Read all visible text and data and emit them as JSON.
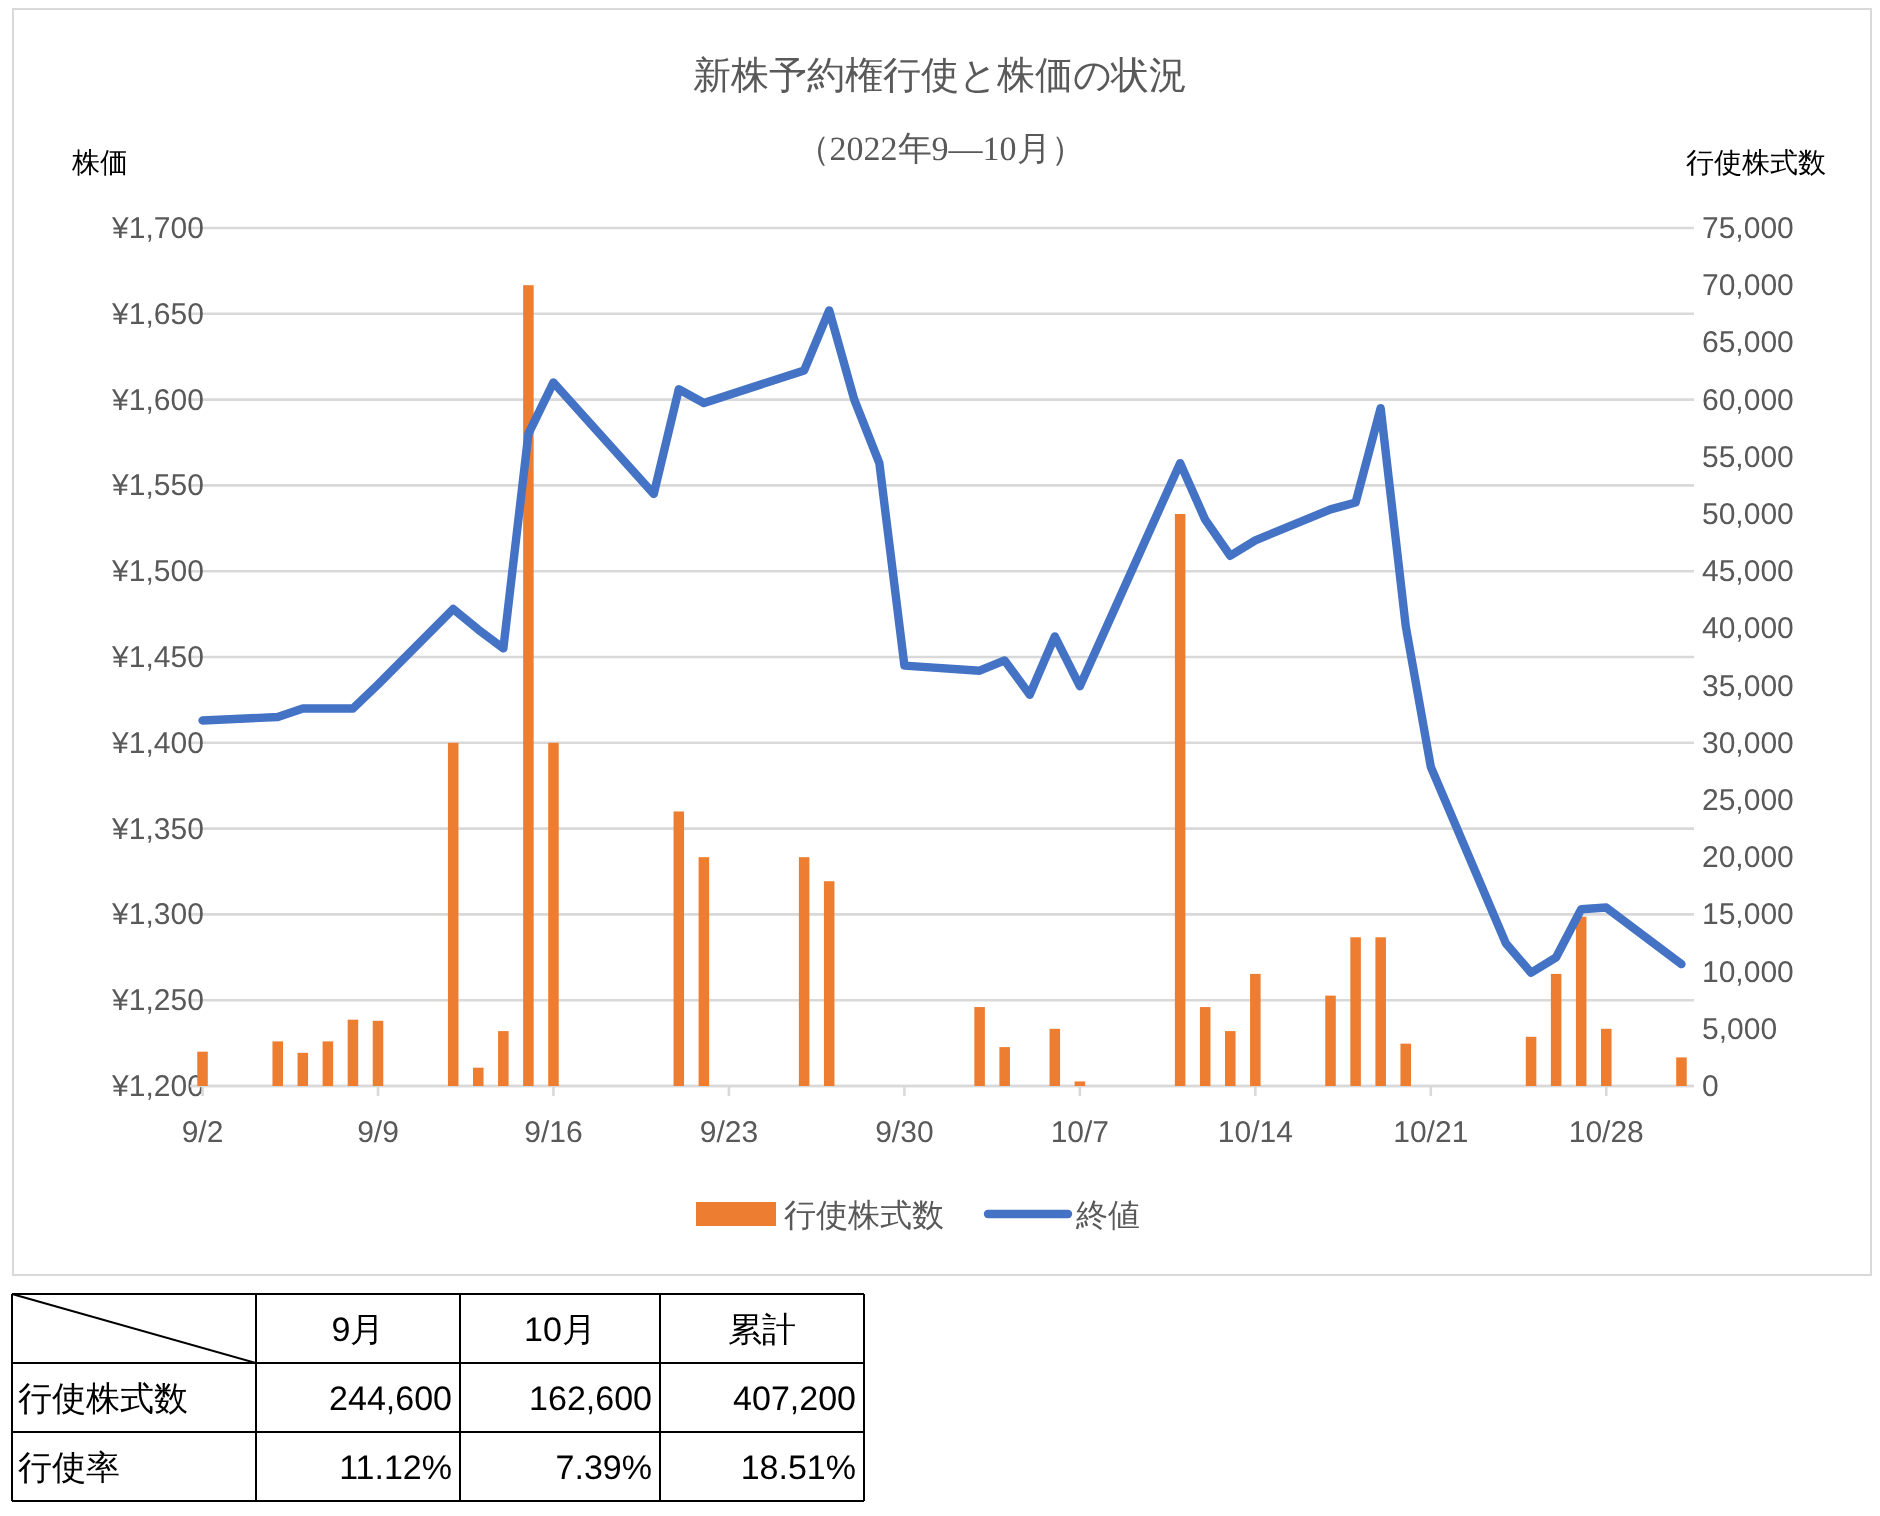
{
  "chart_data": [
    {
      "type": "bar",
      "title": "新株予約権行使と株価の状況",
      "subtitle": "（2022年9—10月）",
      "ylabel": "株価",
      "y2label": "行使株式数",
      "xlim": [
        "2022-09-01T12:00",
        "2022-10-31T12:00"
      ],
      "xticks": [
        {
          "value": "2022-09-02",
          "label": "9/2"
        },
        {
          "value": "2022-09-09",
          "label": "9/9"
        },
        {
          "value": "2022-09-16",
          "label": "9/16"
        },
        {
          "value": "2022-09-23",
          "label": "9/23"
        },
        {
          "value": "2022-09-30",
          "label": "9/30"
        },
        {
          "value": "2022-10-07",
          "label": "10/7"
        },
        {
          "value": "2022-10-14",
          "label": "10/14"
        },
        {
          "value": "2022-10-21",
          "label": "10/21"
        },
        {
          "value": "2022-10-28",
          "label": "10/28"
        }
      ],
      "ylim": [
        1200,
        1700
      ],
      "yticks": [
        {
          "value": 1200,
          "label": "¥1,200"
        },
        {
          "value": 1250,
          "label": "¥1,250"
        },
        {
          "value": 1300,
          "label": "¥1,300"
        },
        {
          "value": 1350,
          "label": "¥1,350"
        },
        {
          "value": 1400,
          "label": "¥1,400"
        },
        {
          "value": 1450,
          "label": "¥1,450"
        },
        {
          "value": 1500,
          "label": "¥1,500"
        },
        {
          "value": 1550,
          "label": "¥1,550"
        },
        {
          "value": 1600,
          "label": "¥1,600"
        },
        {
          "value": 1650,
          "label": "¥1,650"
        },
        {
          "value": 1700,
          "label": "¥1,700"
        }
      ],
      "y2lim": [
        0,
        75000
      ],
      "y2ticks": [
        0,
        {
          "value": 5000,
          "label": "5,000"
        },
        {
          "value": 10000,
          "label": "10,000"
        },
        {
          "value": 15000,
          "label": "15,000"
        },
        {
          "value": 20000,
          "label": "20,000"
        },
        {
          "value": 25000,
          "label": "25,000"
        },
        {
          "value": 30000,
          "label": "30,000"
        },
        {
          "value": 35000,
          "label": "35,000"
        },
        {
          "value": 40000,
          "label": "40,000"
        },
        {
          "value": 45000,
          "label": "45,000"
        },
        {
          "value": 50000,
          "label": "50,000"
        },
        {
          "value": 55000,
          "label": "55,000"
        },
        {
          "value": 60000,
          "label": "60,000"
        },
        {
          "value": 65000,
          "label": "65,000"
        },
        {
          "value": 70000,
          "label": "70,000"
        },
        {
          "value": 75000,
          "label": "75,000"
        }
      ],
      "grid": "y",
      "legend": "bottom",
      "line_style": "solid",
      "marker": "none",
      "series": [
        {
          "name": "行使株式数",
          "type": "bar",
          "axis": "y2",
          "color": "#ed7d31",
          "x": [
            "2022-09-02",
            "2022-09-05",
            "2022-09-06",
            "2022-09-07",
            "2022-09-08",
            "2022-09-09",
            "2022-09-12",
            "2022-09-13",
            "2022-09-14",
            "2022-09-15",
            "2022-09-16",
            "2022-09-21",
            "2022-09-22",
            "2022-09-26",
            "2022-09-27",
            "2022-10-03",
            "2022-10-04",
            "2022-10-06",
            "2022-10-07",
            "2022-10-11",
            "2022-10-12",
            "2022-10-13",
            "2022-10-14",
            "2022-10-17",
            "2022-10-18",
            "2022-10-19",
            "2022-10-20",
            "2022-10-25",
            "2022-10-26",
            "2022-10-27",
            "2022-10-28",
            "2022-10-31"
          ],
          "values": [
            3000,
            3900,
            2900,
            3900,
            5800,
            5700,
            30000,
            1600,
            4800,
            70000,
            30000,
            24000,
            20000,
            20000,
            17900,
            6900,
            3400,
            5000,
            400,
            50000,
            6900,
            4800,
            9800,
            7900,
            13000,
            13000,
            3700,
            4300,
            9800,
            14800,
            5000,
            2500
          ]
        },
        {
          "name": "終値",
          "type": "line",
          "color": "#4472c4",
          "x": [
            "2022-09-02",
            "2022-09-05",
            "2022-09-06",
            "2022-09-07",
            "2022-09-08",
            "2022-09-09",
            "2022-09-12",
            "2022-09-13",
            "2022-09-14",
            "2022-09-15",
            "2022-09-16",
            "2022-09-20",
            "2022-09-21",
            "2022-09-22",
            "2022-09-26",
            "2022-09-27",
            "2022-09-28",
            "2022-09-29",
            "2022-09-30",
            "2022-10-03",
            "2022-10-04",
            "2022-10-05",
            "2022-10-06",
            "2022-10-07",
            "2022-10-11",
            "2022-10-12",
            "2022-10-13",
            "2022-10-14",
            "2022-10-17",
            "2022-10-18",
            "2022-10-19",
            "2022-10-20",
            "2022-10-21",
            "2022-10-24",
            "2022-10-25",
            "2022-10-26",
            "2022-10-27",
            "2022-10-28",
            "2022-10-31"
          ],
          "values": [
            1413,
            1415,
            1420,
            1420,
            1420,
            1434,
            1478,
            1466,
            1455,
            1580,
            1610,
            1545,
            1606,
            1598,
            1617,
            1652,
            1600,
            1563,
            1445,
            1442,
            1448,
            1428,
            1462,
            1433,
            1563,
            1530,
            1509,
            1518,
            1536,
            1540,
            1595,
            1468,
            1386,
            1283,
            1266,
            1275,
            1303,
            1304,
            1271
          ]
        }
      ]
    },
    {
      "type": "other",
      "categories": [
        "9月",
        "10月",
        "累計"
      ],
      "y_categories": [
        "行使株式数",
        "行使率"
      ],
      "cell_labels": [
        [
          "244,600",
          "162,600",
          "407,200"
        ],
        [
          "11.12%",
          "7.39%",
          "18.51%"
        ]
      ]
    }
  ]
}
